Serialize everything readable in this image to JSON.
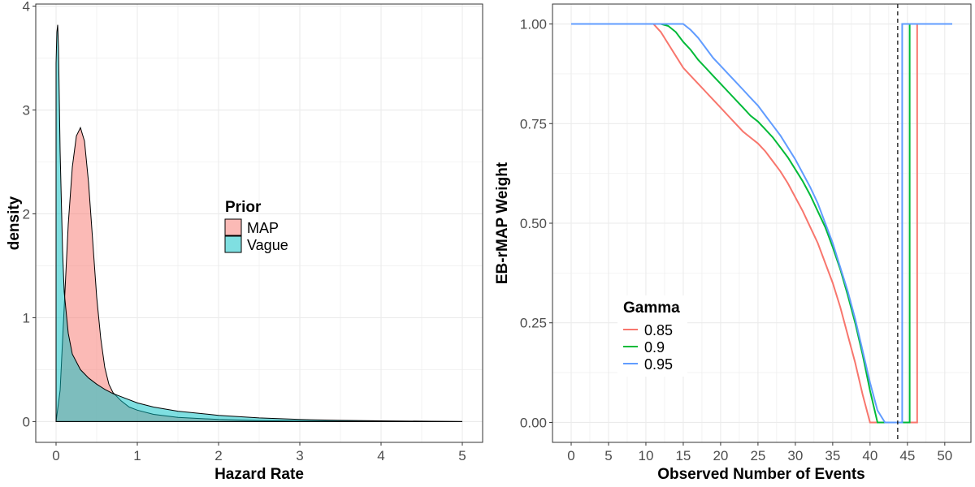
{
  "chart_data": [
    {
      "type": "area",
      "title": "",
      "xlabel": "Hazard Rate",
      "ylabel": "density",
      "xlim": [
        -0.25,
        5.25
      ],
      "ylim": [
        -0.2,
        4.02
      ],
      "xticks": [
        0,
        1,
        2,
        3,
        4,
        5
      ],
      "xtick_labels": [
        "0",
        "1",
        "2",
        "3",
        "4",
        "5"
      ],
      "yticks": [
        0,
        1,
        2,
        3,
        4
      ],
      "ytick_labels": [
        "0",
        "1",
        "2",
        "3",
        "4"
      ],
      "grid": true,
      "legend": {
        "title": "Prior",
        "position": "center-right"
      },
      "series": [
        {
          "name": "MAP",
          "color": "#F8766D",
          "x": [
            0.0,
            0.05,
            0.1,
            0.15,
            0.2,
            0.25,
            0.3,
            0.35,
            0.4,
            0.45,
            0.5,
            0.55,
            0.6,
            0.65,
            0.7,
            0.8,
            0.9,
            1.0,
            1.2,
            1.5,
            2.0,
            2.5,
            3.0,
            3.5,
            4.0,
            4.5,
            5.0
          ],
          "y": [
            0.0,
            0.3,
            1.1,
            1.9,
            2.45,
            2.75,
            2.83,
            2.7,
            2.3,
            1.75,
            1.2,
            0.8,
            0.52,
            0.36,
            0.28,
            0.2,
            0.14,
            0.11,
            0.07,
            0.04,
            0.02,
            0.01,
            0.006,
            0.003,
            0.002,
            0.001,
            0.0
          ]
        },
        {
          "name": "Vague",
          "color": "#00BFC4",
          "x": [
            0.0,
            0.01,
            0.02,
            0.03,
            0.05,
            0.08,
            0.1,
            0.15,
            0.2,
            0.3,
            0.4,
            0.5,
            0.6,
            0.7,
            0.8,
            1.0,
            1.2,
            1.5,
            2.0,
            2.5,
            3.0,
            3.5,
            4.0,
            4.5,
            5.0
          ],
          "y": [
            3.45,
            3.75,
            3.82,
            3.6,
            2.6,
            1.65,
            1.25,
            0.85,
            0.65,
            0.5,
            0.42,
            0.36,
            0.31,
            0.27,
            0.24,
            0.18,
            0.14,
            0.1,
            0.06,
            0.035,
            0.02,
            0.012,
            0.007,
            0.004,
            0.0
          ]
        }
      ]
    },
    {
      "type": "line",
      "title": "",
      "xlabel": "Observed Number of Events",
      "ylabel": "EB-rMAP Weight",
      "xlim": [
        -2.5,
        53.5
      ],
      "ylim": [
        -0.05,
        1.05
      ],
      "xticks": [
        0,
        5,
        10,
        15,
        20,
        25,
        30,
        35,
        40,
        45,
        50
      ],
      "xtick_labels": [
        "0",
        "5",
        "10",
        "15",
        "20",
        "25",
        "30",
        "35",
        "40",
        "45",
        "50"
      ],
      "yticks": [
        0,
        0.25,
        0.5,
        0.75,
        1.0
      ],
      "ytick_labels": [
        "0.00",
        "0.25",
        "0.50",
        "0.75",
        "1.00"
      ],
      "grid": true,
      "vline": 43.7,
      "legend": {
        "title": "Gamma",
        "position": "bottom-left"
      },
      "series": [
        {
          "name": "0.85",
          "color": "#F8766D",
          "x": [
            0,
            11,
            12,
            13,
            14,
            15,
            16,
            17,
            18,
            19,
            20,
            21,
            22,
            23,
            24,
            25,
            26,
            27,
            28,
            29,
            30,
            31,
            32,
            33,
            34,
            35,
            36,
            37,
            38,
            39,
            40,
            46.3,
            46.3,
            47
          ],
          "y": [
            1.0,
            1.0,
            0.98,
            0.95,
            0.92,
            0.89,
            0.87,
            0.85,
            0.83,
            0.81,
            0.79,
            0.77,
            0.75,
            0.73,
            0.715,
            0.7,
            0.68,
            0.655,
            0.63,
            0.6,
            0.565,
            0.53,
            0.49,
            0.45,
            0.4,
            0.35,
            0.29,
            0.22,
            0.15,
            0.07,
            0.0,
            0.0,
            1.0,
            1.0
          ]
        },
        {
          "name": "0.9",
          "color": "#00BA38",
          "x": [
            0,
            12,
            13,
            14,
            15,
            16,
            17,
            18,
            19,
            20,
            21,
            22,
            23,
            24,
            25,
            26,
            27,
            28,
            29,
            30,
            31,
            32,
            33,
            34,
            35,
            36,
            37,
            38,
            39,
            40,
            41,
            45.3,
            45.3,
            46
          ],
          "y": [
            1.0,
            1.0,
            0.995,
            0.98,
            0.955,
            0.935,
            0.91,
            0.89,
            0.87,
            0.85,
            0.83,
            0.81,
            0.79,
            0.77,
            0.755,
            0.735,
            0.715,
            0.69,
            0.665,
            0.635,
            0.605,
            0.57,
            0.53,
            0.49,
            0.44,
            0.385,
            0.32,
            0.25,
            0.17,
            0.08,
            0.0,
            0.0,
            1.0,
            1.0
          ]
        },
        {
          "name": "0.95",
          "color": "#619CFF",
          "x": [
            0,
            15,
            16,
            17,
            18,
            19,
            20,
            21,
            22,
            23,
            24,
            25,
            26,
            27,
            28,
            29,
            30,
            31,
            32,
            33,
            34,
            35,
            36,
            37,
            38,
            39,
            40,
            41,
            42,
            44.3,
            44.3,
            51
          ],
          "y": [
            1.0,
            1.0,
            0.985,
            0.965,
            0.94,
            0.915,
            0.895,
            0.875,
            0.855,
            0.835,
            0.815,
            0.795,
            0.77,
            0.745,
            0.72,
            0.69,
            0.66,
            0.625,
            0.59,
            0.55,
            0.5,
            0.45,
            0.39,
            0.33,
            0.26,
            0.18,
            0.1,
            0.03,
            0.0,
            0.0,
            1.0,
            1.0
          ]
        }
      ]
    }
  ]
}
